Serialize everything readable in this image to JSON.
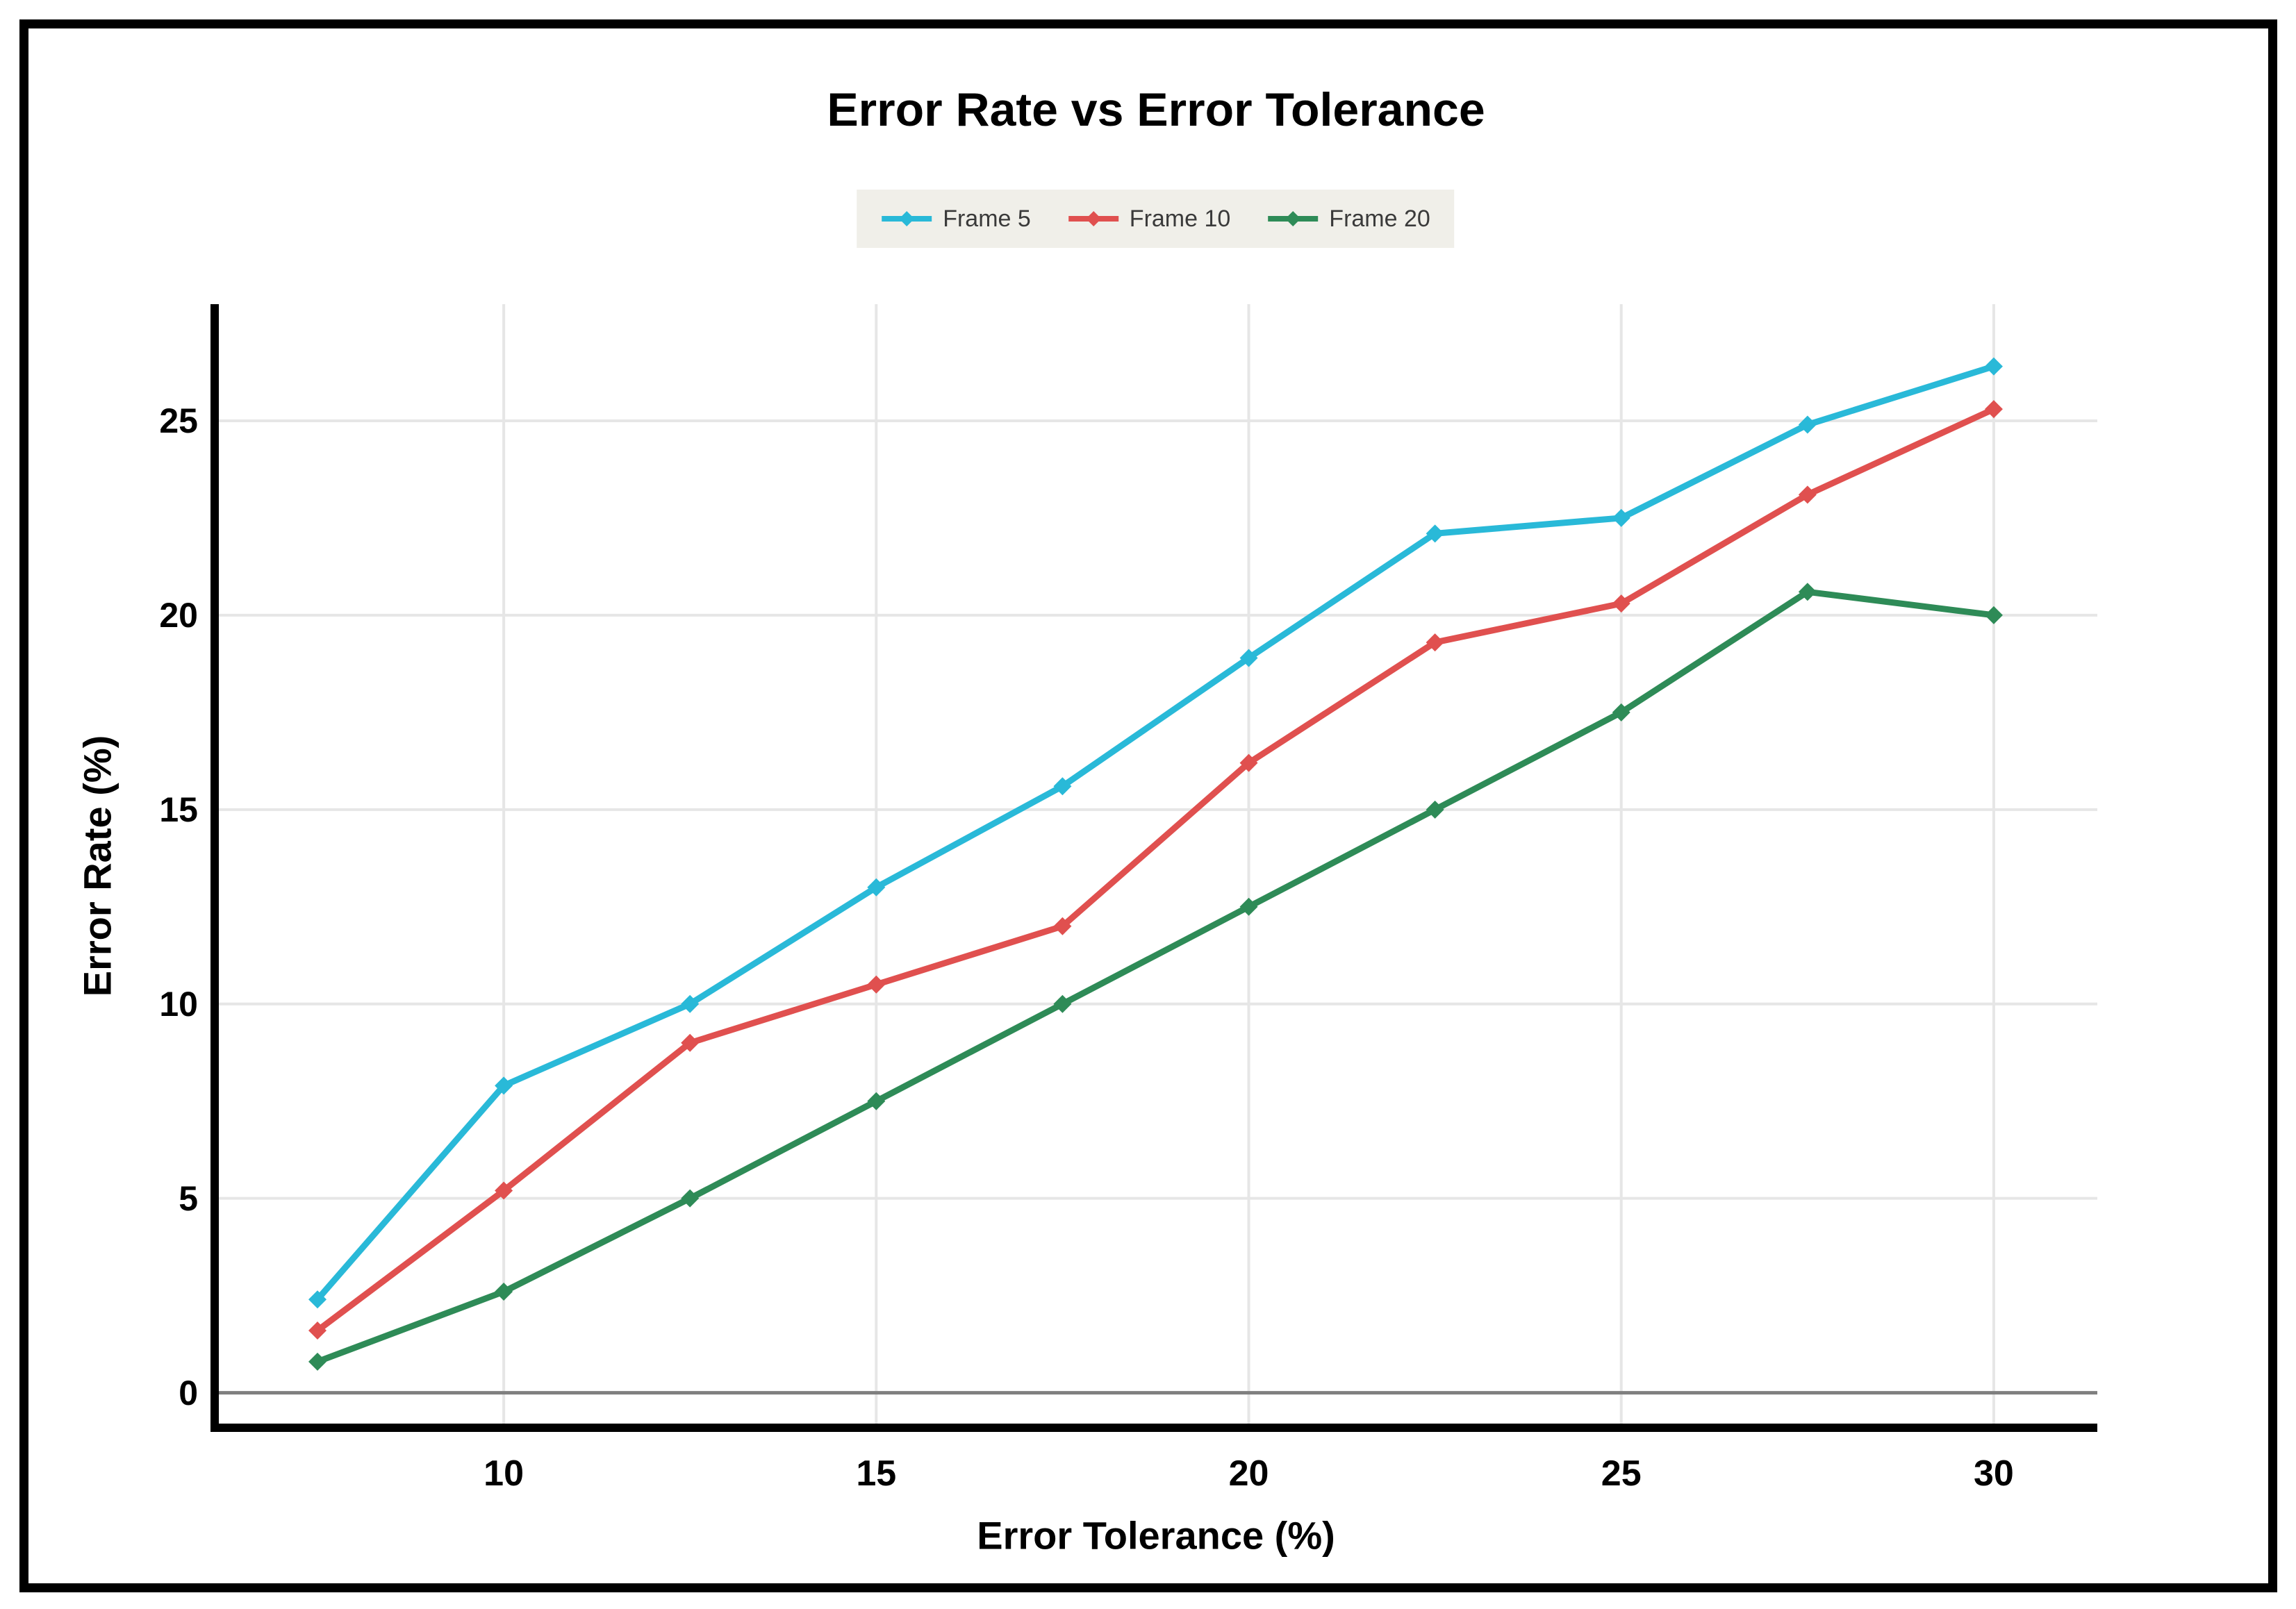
{
  "page": {
    "title": "Error Rate vs Error Tolerance"
  },
  "chart_data": {
    "type": "line",
    "title": "Error Rate vs Error Tolerance",
    "xlabel": "Error Tolerance (%)",
    "ylabel": "Error Rate (%)",
    "x": [
      7.5,
      10,
      12.5,
      15,
      17.5,
      20,
      22.5,
      25,
      27.5,
      30
    ],
    "series": [
      {
        "name": "Frame 5",
        "color": "#29b9d8",
        "values": [
          2.4,
          7.9,
          10.0,
          13.0,
          15.6,
          18.9,
          22.1,
          22.5,
          24.9,
          26.4
        ]
      },
      {
        "name": "Frame 10",
        "color": "#e0504f",
        "values": [
          1.6,
          5.2,
          9.0,
          10.5,
          12.0,
          16.2,
          19.3,
          20.3,
          23.1,
          25.3
        ]
      },
      {
        "name": "Frame 20",
        "color": "#2e8b57",
        "values": [
          0.8,
          2.6,
          5.0,
          7.5,
          10.0,
          12.5,
          15.0,
          17.5,
          20.6,
          20.0
        ]
      }
    ],
    "x_ticks": [
      "10",
      "15",
      "20",
      "25",
      "30"
    ],
    "x_tick_values": [
      10,
      15,
      20,
      25,
      30
    ],
    "y_ticks": [
      "0",
      "5",
      "10",
      "15",
      "20",
      "25"
    ],
    "y_tick_values": [
      0,
      5,
      10,
      15,
      20,
      25
    ],
    "xlim": [
      6.12,
      31.39
    ],
    "ylim": [
      -0.9,
      28.0
    ],
    "grid": true,
    "zero_line": true,
    "legend_position": "top-center"
  },
  "colors": {
    "background": "#ffffff",
    "frame_border": "#000000",
    "axis_line": "#000000",
    "grid_line": "#e6e6e6",
    "zero_line": "#7f7f7f",
    "legend_background": "#f0efe9",
    "legend_text": "#3a3a3a",
    "tick_text": "#000000"
  }
}
